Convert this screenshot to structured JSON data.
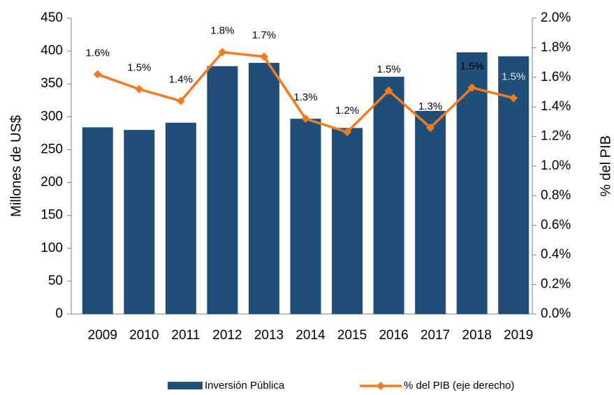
{
  "chart_data": {
    "type": "bar",
    "categories": [
      "2009",
      "2010",
      "2011",
      "2012",
      "2013",
      "2014",
      "2015",
      "2016",
      "2017",
      "2018",
      "2019"
    ],
    "series": [
      {
        "name": "Inversión Pública",
        "color": "#1f4e79",
        "values": [
          284,
          280,
          291,
          377,
          382,
          297,
          283,
          361,
          309,
          398,
          392
        ]
      },
      {
        "name": "% del PIB (eje derecho)",
        "color": "#f47a20",
        "axis": "y2",
        "type": "line",
        "values": [
          1.62,
          1.52,
          1.44,
          1.77,
          1.74,
          1.32,
          1.23,
          1.51,
          1.26,
          1.53,
          1.46
        ],
        "value_labels": [
          "1.6%",
          "1.5%",
          "1.4%",
          "1.8%",
          "1.7%",
          "1.3%",
          "1.2%",
          "1.5%",
          "1.3%",
          "1.5%",
          "1.5%"
        ]
      }
    ],
    "ylabel": "Millones de US$",
    "y2label": "% del PIB",
    "ylim": [
      0,
      450
    ],
    "yticks": [
      0,
      50,
      100,
      150,
      200,
      250,
      300,
      350,
      400,
      450
    ],
    "y2lim": [
      0,
      2
    ],
    "y2ticks": [
      {
        "value": 0,
        "label": "0.0%"
      },
      {
        "value": 0.2,
        "label": "0.2%"
      },
      {
        "value": 0.4,
        "label": "0.4%"
      },
      {
        "value": 0.6,
        "label": "0.6%"
      },
      {
        "value": 0.8,
        "label": "0.8%"
      },
      {
        "value": 1.0,
        "label": "1.0%"
      },
      {
        "value": 1.2,
        "label": "1.2%"
      },
      {
        "value": 1.4,
        "label": "1.4%"
      },
      {
        "value": 1.6,
        "label": "1.6%"
      },
      {
        "value": 1.8,
        "label": "1.8%"
      },
      {
        "value": 2.0,
        "label": "2.0%"
      }
    ],
    "legend": "bottom"
  }
}
